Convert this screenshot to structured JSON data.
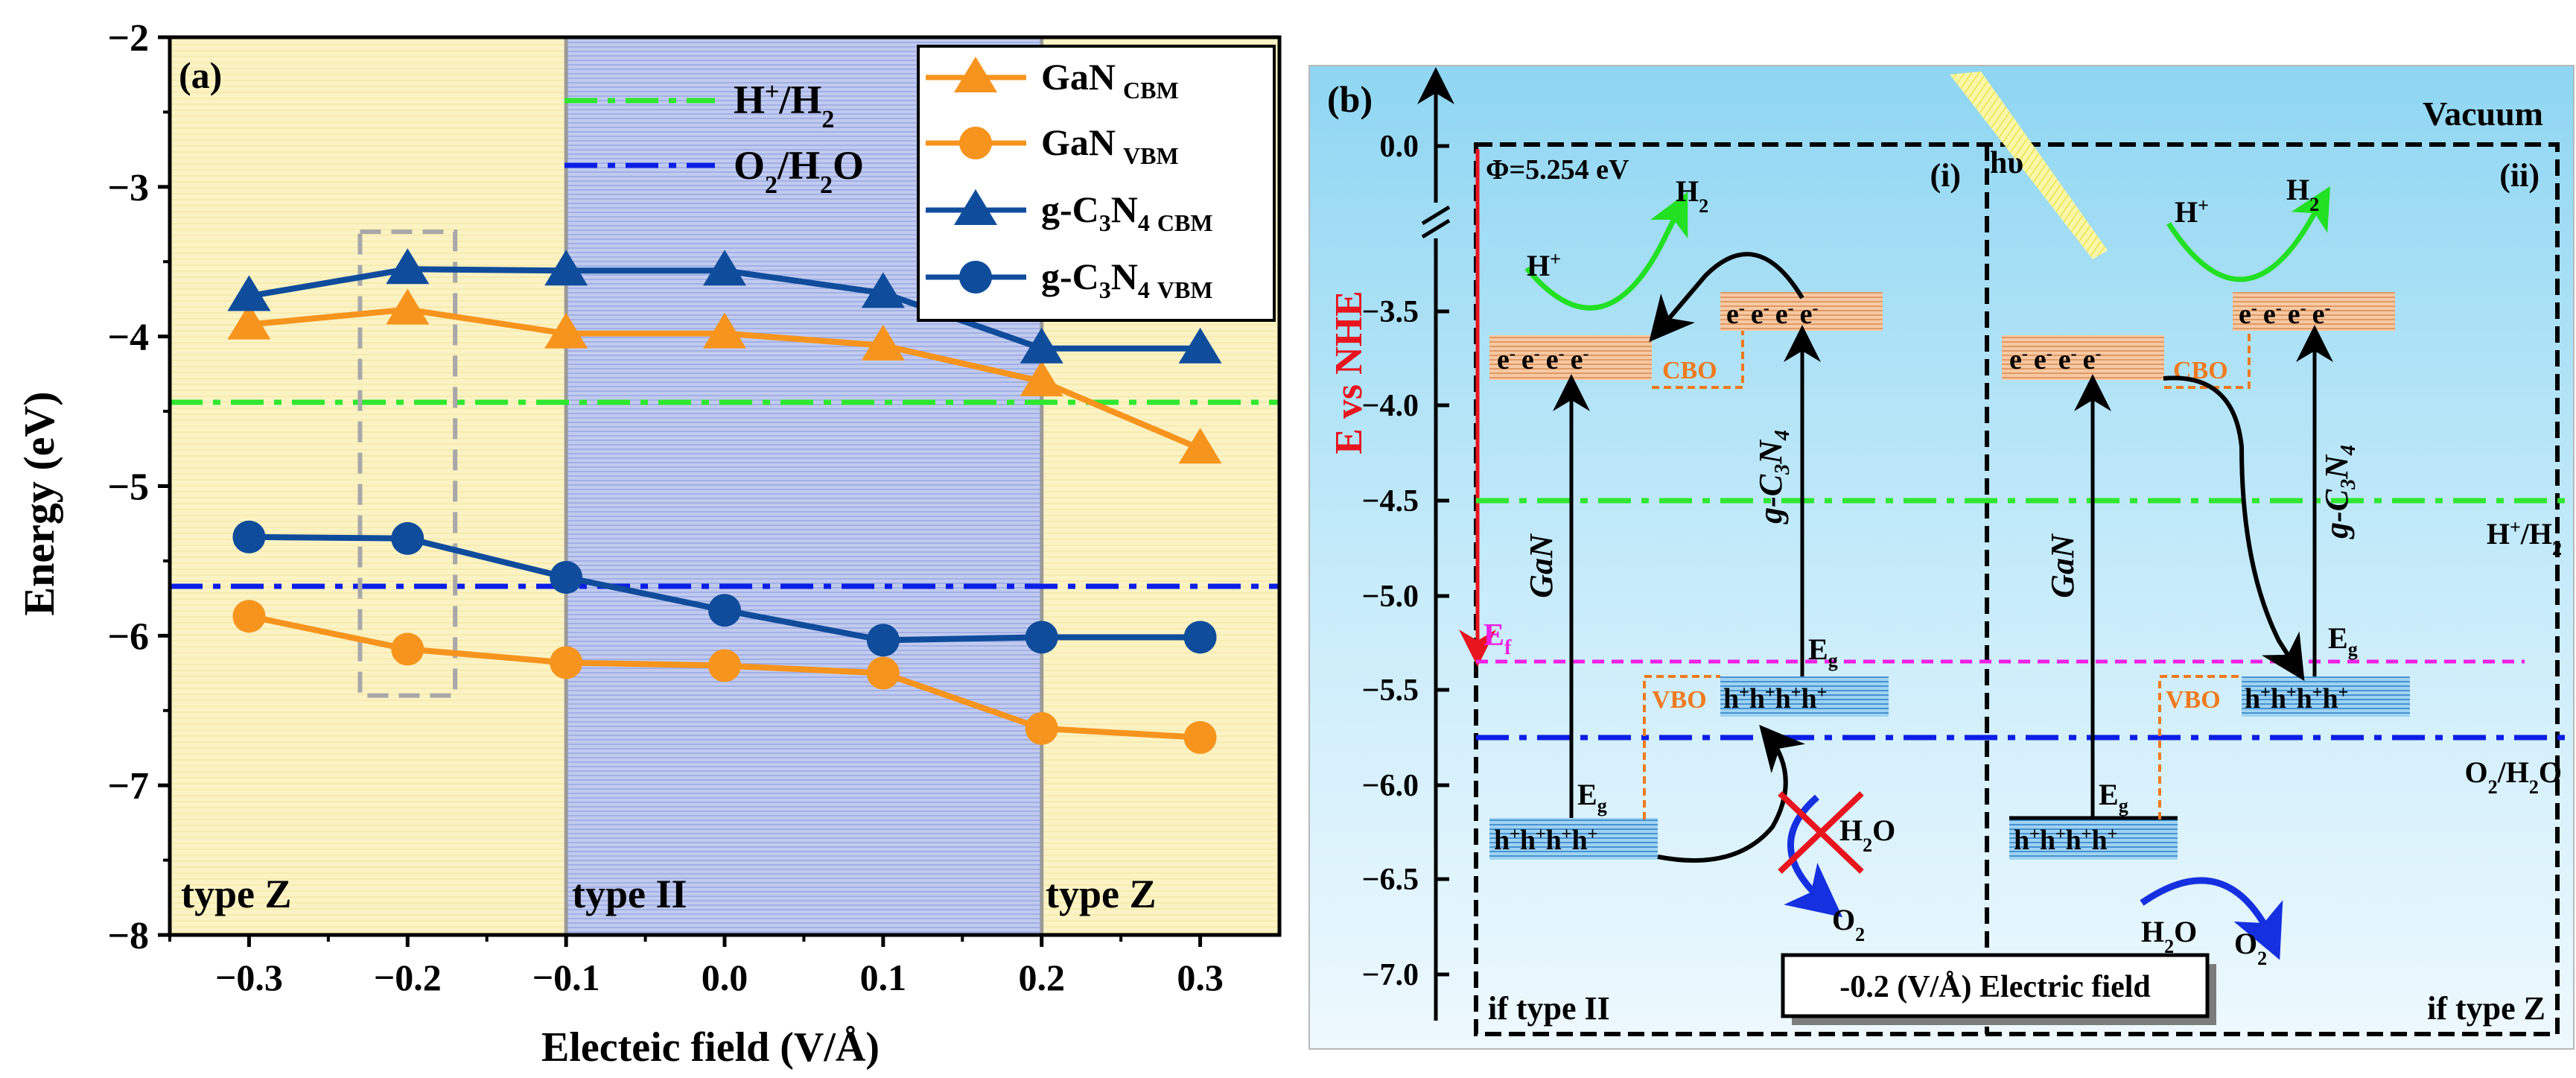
{
  "panel_a": {
    "label": "(a)",
    "chart_data": {
      "type": "line",
      "xlabel": "Electeic field (V/Å)",
      "ylabel": "Energy (eV)",
      "xlim": [
        -0.35,
        0.35
      ],
      "ylim": [
        -8,
        -2
      ],
      "x": [
        -0.3,
        -0.2,
        -0.1,
        0.0,
        0.1,
        0.2,
        0.3
      ],
      "x_ticks": [
        "−0.3",
        "−0.2",
        "−0.1",
        "0.0",
        "0.1",
        "0.2",
        "0.3"
      ],
      "y_ticks": [
        "−8",
        "−7",
        "−6",
        "−5",
        "−4",
        "−3",
        "−2"
      ],
      "y_tick_values": [
        -8,
        -7,
        -6,
        -5,
        -4,
        -3,
        -2
      ],
      "series": [
        {
          "name": "GaN CBM",
          "base": "GaN",
          "sub": "CBM",
          "marker": "triangle",
          "color": "#f7941d",
          "values": [
            -3.92,
            -3.82,
            -3.98,
            -3.98,
            -4.06,
            -4.3,
            -4.75
          ]
        },
        {
          "name": "GaN VBM",
          "base": "GaN",
          "sub": "VBM",
          "marker": "circle",
          "color": "#f7941d",
          "values": [
            -5.87,
            -6.09,
            -6.18,
            -6.2,
            -6.25,
            -6.62,
            -6.68
          ]
        },
        {
          "name": "g-C3N4 CBM",
          "base": "g-C",
          "sub": "CBM",
          "marker": "triangle",
          "color": "#0f4c9c",
          "values": [
            -3.73,
            -3.55,
            -3.56,
            -3.56,
            -3.71,
            -4.08,
            -4.08
          ]
        },
        {
          "name": "g-C3N4 VBM",
          "base": "g-C",
          "sub": "VBM",
          "marker": "circle",
          "color": "#0f4c9c",
          "values": [
            -5.34,
            -5.35,
            -5.61,
            -5.83,
            -6.03,
            -6.01,
            -6.01
          ]
        }
      ],
      "reference_lines": [
        {
          "name": "H+/H2",
          "value": -4.44,
          "color": "#2ee82e"
        },
        {
          "name": "O2/H2O",
          "value": -5.67,
          "color": "#0b1ee6"
        }
      ],
      "regions": [
        {
          "label": "type Z",
          "from": -0.35,
          "to": -0.1,
          "color": "#fcf3c4"
        },
        {
          "label": "type II",
          "from": -0.1,
          "to": 0.2,
          "color": "#b7c3ec"
        },
        {
          "label": "type Z",
          "from": 0.2,
          "to": 0.35,
          "color": "#fcf3c4"
        }
      ],
      "highlight_box": {
        "x_from": -0.23,
        "x_to": -0.17,
        "y_from": -6.4,
        "y_to": -3.3
      }
    }
  },
  "panel_b": {
    "label": "(b)",
    "y_axis_label": "E vs NHE",
    "y_ticks": [
      "0.0",
      "−3.5",
      "−4.0",
      "−4.5",
      "−5.0",
      "−5.5",
      "−6.0",
      "−6.5",
      "−7.0"
    ],
    "vacuum_label": "Vacuum",
    "phi_label": "Φ=5.254 eV",
    "hv_label": "hυ",
    "case_i": "(i)",
    "case_ii": "(ii)",
    "ef_label": "E",
    "ef_sub": "f",
    "h_pair_label": "H",
    "o_pair_label": "O",
    "gan_label": "GaN",
    "gc3n4_label": "g-C",
    "eg_label": "E",
    "eg_sub": "g",
    "cbo_label": "CBO",
    "vbo_label": "VBO",
    "electron": "e",
    "hole": "h",
    "h_plus": "H",
    "h2": "H",
    "h2o": "H",
    "o2": "O",
    "if_type_ii": "if type II",
    "if_type_z": "if type Z",
    "field_box": "-0.2 (V/Å) Electric field"
  }
}
